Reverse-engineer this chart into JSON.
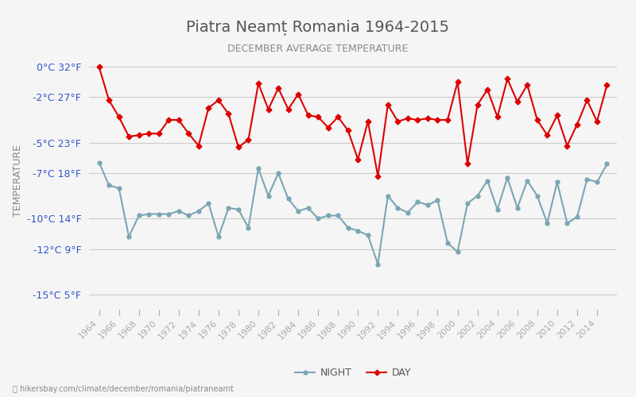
{
  "title": "Piatra Neamț Romania 1964-2015",
  "subtitle": "DECEMBER AVERAGE TEMPERATURE",
  "ylabel": "TEMPERATURE",
  "footer": "hikersbay.com/climate/december/romania/piatraneamt",
  "years": [
    1964,
    1965,
    1966,
    1967,
    1968,
    1969,
    1970,
    1971,
    1972,
    1973,
    1974,
    1975,
    1976,
    1977,
    1978,
    1979,
    1980,
    1981,
    1982,
    1983,
    1984,
    1985,
    1986,
    1987,
    1988,
    1989,
    1990,
    1991,
    1992,
    1993,
    1994,
    1995,
    1996,
    1997,
    1998,
    1999,
    2000,
    2001,
    2002,
    2003,
    2004,
    2005,
    2006,
    2007,
    2008,
    2009,
    2010,
    2011,
    2012,
    2013,
    2014,
    2015
  ],
  "day": [
    0.0,
    -2.2,
    -3.3,
    -4.6,
    -4.5,
    -4.4,
    -4.4,
    -3.5,
    -3.5,
    -4.4,
    -5.2,
    -2.7,
    -2.2,
    -3.1,
    -5.3,
    -4.8,
    -1.1,
    -2.8,
    -1.4,
    -2.8,
    -1.8,
    -3.2,
    -3.3,
    -4.0,
    -3.3,
    -4.2,
    -6.1,
    -3.6,
    -7.2,
    -2.5,
    -3.6,
    -3.4,
    -3.5,
    -3.4,
    -3.5,
    -3.5,
    -1.0,
    -6.4,
    -2.5,
    -1.5,
    -3.3,
    -0.8,
    -2.3,
    -1.2,
    -3.5,
    -4.5,
    -3.2,
    -5.2,
    -3.8,
    -2.2,
    -3.6,
    -1.2
  ],
  "night": [
    -6.3,
    -7.8,
    -8.0,
    -11.2,
    -9.8,
    -9.7,
    -9.7,
    -9.7,
    -9.5,
    -9.8,
    -9.5,
    -9.0,
    -11.2,
    -9.3,
    -9.4,
    -10.6,
    -6.7,
    -8.5,
    -7.0,
    -8.7,
    -9.5,
    -9.3,
    -10.0,
    -9.8,
    -9.8,
    -10.6,
    -10.8,
    -11.1,
    -13.0,
    -8.5,
    -9.3,
    -9.6,
    -8.9,
    -9.1,
    -8.8,
    -11.6,
    -12.2,
    -9.0,
    -8.5,
    -7.5,
    -9.4,
    -7.3,
    -9.3,
    -7.5,
    -8.5,
    -10.3,
    -7.6,
    -10.3,
    -9.9,
    -7.4,
    -7.6,
    -6.4
  ],
  "day_color": "#dd0000",
  "night_color": "#7aa6b5",
  "background_color": "#f5f5f5",
  "grid_color": "#cccccc",
  "ylim": [
    -16,
    1
  ],
  "yticks_celsius": [
    0,
    -2,
    -5,
    -7,
    -10,
    -12,
    -15
  ],
  "yticks_fahrenheit": [
    32,
    27,
    23,
    18,
    14,
    9,
    5
  ],
  "title_color": "#555555",
  "subtitle_color": "#888888",
  "axis_label_color": "#3355cc",
  "footer_color": "#888888"
}
